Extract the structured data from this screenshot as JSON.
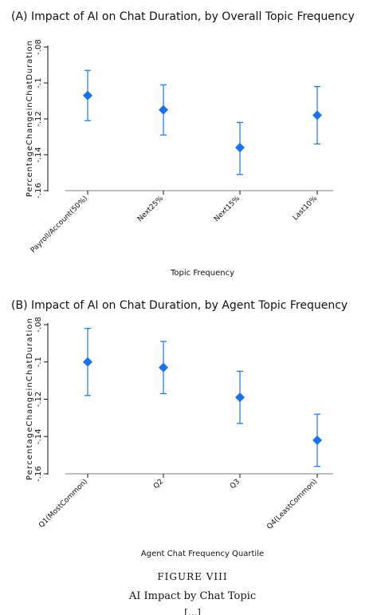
{
  "figure": {
    "label": "FIGURE VIII",
    "title": "AI Impact by Chat Topic",
    "cut_text": "[...]"
  },
  "chart_data": [
    {
      "type": "scatter",
      "title": "(A)  Impact of AI on Chat Duration, by Overall Topic Frequency",
      "xlabel": "Topic Frequency",
      "ylabel": "PercentageChangeinChatDuration",
      "ylim": [
        -0.16,
        -0.08
      ],
      "yticks": [
        -0.08,
        -0.1,
        -0.12,
        -0.14,
        -0.16
      ],
      "ytick_labels": [
        "-.08",
        "-.1",
        "-.12",
        "-.14",
        "-.16"
      ],
      "categories": [
        "Payroll/Account(50%)",
        "Next25%",
        "Next15%",
        "Last10%"
      ],
      "values": [
        -0.107,
        -0.115,
        -0.136,
        -0.118
      ],
      "ci_low": [
        -0.121,
        -0.129,
        -0.151,
        -0.134
      ],
      "ci_high": [
        -0.093,
        -0.101,
        -0.122,
        -0.102
      ],
      "color": "#1a73e8",
      "grid": false
    },
    {
      "type": "scatter",
      "title": "(B)  Impact of AI on Chat Duration, by Agent Topic Frequency",
      "xlabel": "Agent Chat Frequency Quartile",
      "ylabel": "PercentageChangeinChatDuration",
      "ylim": [
        -0.16,
        -0.08
      ],
      "yticks": [
        -0.08,
        -0.1,
        -0.12,
        -0.14,
        -0.16
      ],
      "ytick_labels": [
        "-.08",
        "-.1",
        "-.12",
        "-.14",
        "-.16"
      ],
      "categories": [
        "Q1(MostCommon)",
        "Q2",
        "Q3",
        "Q4(LeastCommon)"
      ],
      "values": [
        -0.1,
        -0.103,
        -0.119,
        -0.142
      ],
      "ci_low": [
        -0.118,
        -0.117,
        -0.133,
        -0.156
      ],
      "ci_high": [
        -0.082,
        -0.089,
        -0.105,
        -0.128
      ],
      "color": "#1a73e8",
      "grid": false
    }
  ]
}
